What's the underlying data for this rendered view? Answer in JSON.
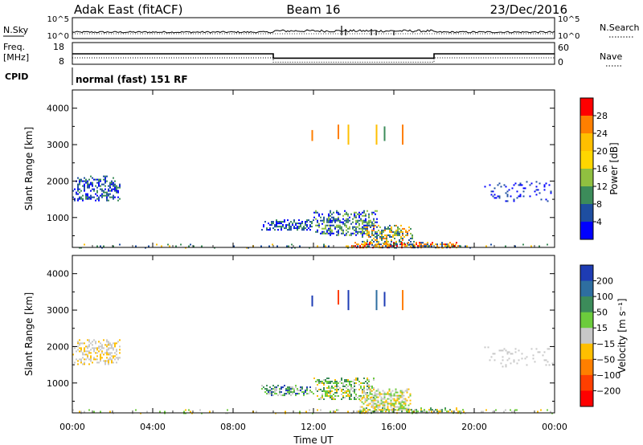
{
  "header": {
    "station": "Adak East (fitACF)",
    "beam": "Beam 16",
    "date": "23/Dec/2016"
  },
  "strip": {
    "nsky_label": "N.Sky",
    "nsky_ticks": [
      "10^5",
      "10^0"
    ],
    "nsearch_label": "N.Search",
    "nsearch_ticks": [
      "10^5",
      "10^0"
    ],
    "freq_label": "Freq.",
    "freq_unit": "[MHz]",
    "freq_ticks": [
      "18",
      "8"
    ],
    "nave_label": "Nave",
    "nave_ticks": [
      "60",
      "0"
    ],
    "cpid_label": "CPID",
    "cpid_text": "normal (fast) 151 RF"
  },
  "panels": {
    "ylabel": "Slant Range [km]",
    "yticks": [
      "4000",
      "3000",
      "2000",
      "1000"
    ],
    "xlabel": "Time UT",
    "xticks": [
      "00:00",
      "04:00",
      "08:00",
      "12:00",
      "16:00",
      "20:00",
      "00:00"
    ]
  },
  "power_colorbar": {
    "label": "Power [dB]",
    "ticks": [
      "28",
      "24",
      "20",
      "16",
      "12",
      "8",
      "4"
    ],
    "colors": [
      "#ff0000",
      "#ff7f00",
      "#ffbf00",
      "#ffd700",
      "#90c040",
      "#3c8c5a",
      "#1e4ea0",
      "#0000ff"
    ]
  },
  "velocity_colorbar": {
    "label": "Velocity [m s⁻¹]",
    "ticks": [
      "200",
      "100",
      "50",
      "15",
      "−15",
      "−50",
      "−100",
      "−200"
    ],
    "colors": [
      "#1e3cb4",
      "#2e6ea0",
      "#3c8c5a",
      "#6ccc3c",
      "#c8c8c8",
      "#ffbf00",
      "#ff7f00",
      "#ff3f00",
      "#ff0000"
    ]
  },
  "chart_data": [
    {
      "type": "line",
      "name": "freq",
      "x_hours": [
        0,
        10,
        10,
        18,
        18,
        24
      ],
      "freq_mhz": [
        12.8,
        12.8,
        10.8,
        10.8,
        12.8,
        12.8
      ],
      "ylim": [
        8,
        18
      ]
    },
    {
      "type": "heatmap",
      "name": "power",
      "xlim_hours": [
        0,
        24
      ],
      "ylim_km": [
        180,
        4500
      ],
      "patches": [
        {
          "t0": 0.0,
          "t1": 2.4,
          "r0": 1450,
          "r1": 2150,
          "density": 0.45,
          "colors": [
            "#1e4ea0",
            "#3c8c5a",
            "#0000ff"
          ]
        },
        {
          "t0": 9.4,
          "t1": 12.0,
          "r0": 650,
          "r1": 950,
          "density": 0.55,
          "colors": [
            "#1e4ea0",
            "#0000ff",
            "#3c8c5a"
          ]
        },
        {
          "t0": 12.0,
          "t1": 15.2,
          "r0": 500,
          "r1": 1200,
          "density": 0.5,
          "colors": [
            "#1e4ea0",
            "#3c8c5a",
            "#90c040",
            "#0000ff"
          ]
        },
        {
          "t0": 14.4,
          "t1": 17.0,
          "r0": 250,
          "r1": 800,
          "density": 0.55,
          "colors": [
            "#ff7f00",
            "#ffbf00",
            "#90c040",
            "#3c8c5a",
            "#1e4ea0"
          ]
        },
        {
          "t0": 13.8,
          "t1": 19.5,
          "r0": 190,
          "r1": 330,
          "density": 0.6,
          "colors": [
            "#ff7f00",
            "#ff0000",
            "#ffbf00",
            "#1e4ea0"
          ]
        },
        {
          "t0": 20.5,
          "t1": 24.0,
          "r0": 1450,
          "r1": 2000,
          "density": 0.15,
          "colors": [
            "#1e4ea0",
            "#0000ff"
          ]
        },
        {
          "t0": 0.0,
          "t1": 24.0,
          "r0": 190,
          "r1": 280,
          "density": 0.12,
          "colors": [
            "#3c8c5a",
            "#1e4ea0",
            "#ffbf00"
          ]
        }
      ],
      "streaks": [
        {
          "t": 11.9,
          "r0": 3100,
          "r1": 3400,
          "color": "#ff7f00"
        },
        {
          "t": 13.2,
          "r0": 3150,
          "r1": 3550,
          "color": "#ff7f00"
        },
        {
          "t": 13.7,
          "r0": 3000,
          "r1": 3550,
          "color": "#ffbf00"
        },
        {
          "t": 15.1,
          "r0": 3000,
          "r1": 3550,
          "color": "#ffbf00"
        },
        {
          "t": 15.5,
          "r0": 3100,
          "r1": 3500,
          "color": "#3c8c5a"
        },
        {
          "t": 16.4,
          "r0": 3000,
          "r1": 3550,
          "color": "#ff7f00"
        }
      ]
    },
    {
      "type": "heatmap",
      "name": "velocity",
      "xlim_hours": [
        0,
        24
      ],
      "ylim_km": [
        180,
        4500
      ],
      "patches": [
        {
          "t0": 0.0,
          "t1": 2.4,
          "r0": 1500,
          "r1": 2200,
          "density": 0.45,
          "colors": [
            "#c8c8c8",
            "#ffbf00",
            "#c8c8c8"
          ]
        },
        {
          "t0": 9.4,
          "t1": 12.0,
          "r0": 650,
          "r1": 950,
          "density": 0.55,
          "colors": [
            "#3c8c5a",
            "#6ccc3c",
            "#1e3cb4",
            "#c8c8c8"
          ]
        },
        {
          "t0": 12.0,
          "t1": 15.0,
          "r0": 550,
          "r1": 1150,
          "density": 0.5,
          "colors": [
            "#6ccc3c",
            "#c8c8c8",
            "#ffbf00",
            "#3c8c5a"
          ]
        },
        {
          "t0": 14.3,
          "t1": 16.8,
          "r0": 250,
          "r1": 850,
          "density": 0.6,
          "colors": [
            "#c8c8c8",
            "#6ccc3c",
            "#ffbf00"
          ]
        },
        {
          "t0": 13.8,
          "t1": 19.5,
          "r0": 190,
          "r1": 330,
          "density": 0.55,
          "colors": [
            "#6ccc3c",
            "#c8c8c8",
            "#3c8c5a",
            "#ffbf00"
          ]
        },
        {
          "t0": 20.5,
          "t1": 24.0,
          "r0": 1450,
          "r1": 2000,
          "density": 0.12,
          "colors": [
            "#c8c8c8"
          ]
        },
        {
          "t0": 0.0,
          "t1": 24.0,
          "r0": 190,
          "r1": 280,
          "density": 0.12,
          "colors": [
            "#c8c8c8",
            "#ffbf00",
            "#6ccc3c"
          ]
        }
      ],
      "streaks": [
        {
          "t": 11.9,
          "r0": 3100,
          "r1": 3400,
          "color": "#1e3cb4"
        },
        {
          "t": 13.2,
          "r0": 3150,
          "r1": 3550,
          "color": "#ff3f00"
        },
        {
          "t": 13.7,
          "r0": 3000,
          "r1": 3550,
          "color": "#1e3cb4"
        },
        {
          "t": 15.1,
          "r0": 3000,
          "r1": 3550,
          "color": "#2e6ea0"
        },
        {
          "t": 15.5,
          "r0": 3100,
          "r1": 3500,
          "color": "#1e3cb4"
        },
        {
          "t": 16.4,
          "r0": 3000,
          "r1": 3550,
          "color": "#ff7f00"
        }
      ]
    }
  ]
}
